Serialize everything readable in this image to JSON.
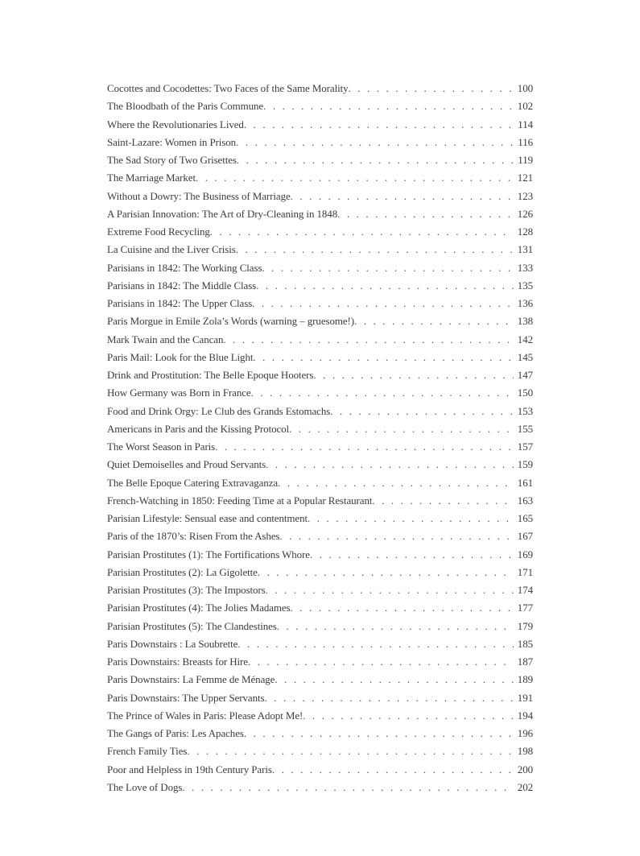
{
  "page": {
    "background_color": "#ffffff",
    "text_color": "#3c3c3c",
    "leader_dot_color": "#4a4a4a"
  },
  "toc": {
    "entries": [
      {
        "title": "Cocottes and Cocodettes: Two Faces of the Same Morality",
        "page": "100"
      },
      {
        "title": "The Bloodbath of the Paris Commune",
        "page": "102"
      },
      {
        "title": "Where the Revolutionaries Lived",
        "page": "114"
      },
      {
        "title": "Saint-Lazare: Women in Prison",
        "page": "116"
      },
      {
        "title": "The Sad Story of Two Grisettes",
        "page": "119"
      },
      {
        "title": "The Marriage Market",
        "page": "121"
      },
      {
        "title": "Without a Dowry: The Business of Marriage",
        "page": "123"
      },
      {
        "title": "A Parisian Innovation: The Art of Dry-Cleaning in 1848",
        "page": "126"
      },
      {
        "title": "Extreme Food Recycling",
        "page": "128"
      },
      {
        "title": "La Cuisine and the Liver Crisis",
        "page": "131"
      },
      {
        "title": "Parisians in 1842: The Working Class",
        "page": "133"
      },
      {
        "title": "Parisians in 1842: The Middle Class",
        "page": "135"
      },
      {
        "title": "Parisians in 1842: The Upper Class",
        "page": "136"
      },
      {
        "title": "Paris Morgue in Emile Zola’s Words (warning – gruesome!)",
        "page": "138"
      },
      {
        "title": "Mark Twain and the Cancan",
        "page": "142"
      },
      {
        "title": "Paris Mail: Look for the Blue Light",
        "page": "145"
      },
      {
        "title": "Drink and Prostitution: The Belle Epoque Hooters",
        "page": "147"
      },
      {
        "title": "How Germany was Born in France",
        "page": "150"
      },
      {
        "title": "Food and Drink Orgy: Le Club des Grands Estomachs",
        "page": "153"
      },
      {
        "title": "Americans in Paris and the Kissing Protocol",
        "page": "155"
      },
      {
        "title": "The Worst Season in Paris",
        "page": "157"
      },
      {
        "title": "Quiet Demoiselles and Proud Servants",
        "page": "159"
      },
      {
        "title": "The Belle Epoque Catering Extravaganza",
        "page": "161"
      },
      {
        "title": "French-Watching in 1850: Feeding Time at a Popular Restaurant",
        "page": "163"
      },
      {
        "title": "Parisian Lifestyle: Sensual ease and contentment",
        "page": "165"
      },
      {
        "title": "Paris of the 1870’s: Risen From the Ashes",
        "page": "167"
      },
      {
        "title": "Parisian Prostitutes (1): The Fortifications Whore",
        "page": "169"
      },
      {
        "title": "Parisian Prostitutes (2): La Gigolette",
        "page": "171"
      },
      {
        "title": "Parisian Prostitutes (3): The Impostors",
        "page": "174"
      },
      {
        "title": "Parisian Prostitutes (4): The Jolies Madames",
        "page": "177"
      },
      {
        "title": "Parisian Prostitutes (5): The Clandestines",
        "page": "179"
      },
      {
        "title": "Paris Downstairs : La Soubrette",
        "page": "185"
      },
      {
        "title": "Paris Downstairs: Breasts for Hire",
        "page": "187"
      },
      {
        "title": "Paris Downstairs: La Femme de Ménage",
        "page": "189"
      },
      {
        "title": "Paris Downstairs: The Upper Servants",
        "page": "191"
      },
      {
        "title": "The Prince of Wales in Paris: Please Adopt Me!",
        "page": "194"
      },
      {
        "title": "The Gangs of Paris: Les Apaches",
        "page": "196"
      },
      {
        "title": "French Family Ties",
        "page": "198"
      },
      {
        "title": "Poor and Helpless in 19th Century Paris",
        "page": "200"
      },
      {
        "title": "The Love of Dogs",
        "page": "202"
      }
    ]
  }
}
